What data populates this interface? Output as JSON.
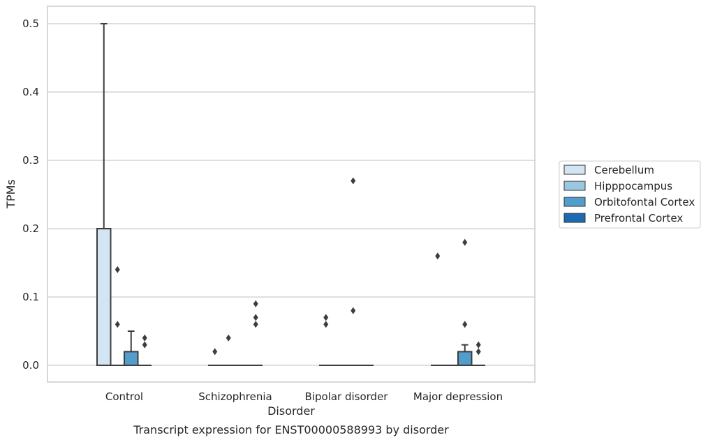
{
  "chart_data": {
    "type": "box",
    "caption": "Transcript expression for ENST00000588993 by disorder",
    "xlabel": "Disorder",
    "ylabel": "TPMs",
    "ylim": [
      -0.025,
      0.525
    ],
    "yticks": [
      0.0,
      0.1,
      0.2,
      0.3,
      0.4,
      0.5
    ],
    "ytick_labels": [
      "0.0",
      "0.1",
      "0.2",
      "0.3",
      "0.4",
      "0.5"
    ],
    "grid": "horizontal",
    "legend_position": "right",
    "categories": [
      "Control",
      "Schizophrenia",
      "Bipolar disorder",
      "Major depression"
    ],
    "series": [
      {
        "name": "Cerebellum",
        "color": "#d3e4f3",
        "boxes": [
          {
            "q1": 0.0,
            "median": 0.0,
            "q3": 0.2,
            "whisker_low": 0.0,
            "whisker_high": 0.5,
            "outliers": []
          },
          {
            "q1": 0.0,
            "median": 0.0,
            "q3": 0.0,
            "whisker_low": 0.0,
            "whisker_high": 0.0,
            "outliers": [
              0.02
            ]
          },
          {
            "q1": 0.0,
            "median": 0.0,
            "q3": 0.0,
            "whisker_low": 0.0,
            "whisker_high": 0.0,
            "outliers": [
              0.06,
              0.07
            ]
          },
          {
            "q1": 0.0,
            "median": 0.0,
            "q3": 0.0,
            "whisker_low": 0.0,
            "whisker_high": 0.0,
            "outliers": [
              0.16
            ]
          }
        ]
      },
      {
        "name": "Hipppocampus",
        "color": "#9ac8e0",
        "boxes": [
          {
            "q1": 0.0,
            "median": 0.0,
            "q3": 0.0,
            "whisker_low": 0.0,
            "whisker_high": 0.0,
            "outliers": [
              0.06,
              0.14
            ]
          },
          {
            "q1": 0.0,
            "median": 0.0,
            "q3": 0.0,
            "whisker_low": 0.0,
            "whisker_high": 0.0,
            "outliers": [
              0.04
            ]
          },
          {
            "q1": 0.0,
            "median": 0.0,
            "q3": 0.0,
            "whisker_low": 0.0,
            "whisker_high": 0.0,
            "outliers": []
          },
          {
            "q1": 0.0,
            "median": 0.0,
            "q3": 0.0,
            "whisker_low": 0.0,
            "whisker_high": 0.0,
            "outliers": []
          }
        ]
      },
      {
        "name": "Orbitofontal Cortex",
        "color": "#529dcc",
        "boxes": [
          {
            "q1": 0.0,
            "median": 0.0,
            "q3": 0.02,
            "whisker_low": 0.0,
            "whisker_high": 0.05,
            "outliers": []
          },
          {
            "q1": 0.0,
            "median": 0.0,
            "q3": 0.0,
            "whisker_low": 0.0,
            "whisker_high": 0.0,
            "outliers": []
          },
          {
            "q1": 0.0,
            "median": 0.0,
            "q3": 0.0,
            "whisker_low": 0.0,
            "whisker_high": 0.0,
            "outliers": [
              0.08,
              0.27
            ]
          },
          {
            "q1": 0.0,
            "median": 0.0,
            "q3": 0.02,
            "whisker_low": 0.0,
            "whisker_high": 0.03,
            "outliers": [
              0.06,
              0.18
            ]
          }
        ]
      },
      {
        "name": "Prefrontal Cortex",
        "color": "#1c6aaf",
        "boxes": [
          {
            "q1": 0.0,
            "median": 0.0,
            "q3": 0.0,
            "whisker_low": 0.0,
            "whisker_high": 0.0,
            "outliers": [
              0.03,
              0.04
            ]
          },
          {
            "q1": 0.0,
            "median": 0.0,
            "q3": 0.0,
            "whisker_low": 0.0,
            "whisker_high": 0.0,
            "outliers": [
              0.06,
              0.07,
              0.09
            ]
          },
          {
            "q1": 0.0,
            "median": 0.0,
            "q3": 0.0,
            "whisker_low": 0.0,
            "whisker_high": 0.0,
            "outliers": []
          },
          {
            "q1": 0.0,
            "median": 0.0,
            "q3": 0.0,
            "whisker_low": 0.0,
            "whisker_high": 0.0,
            "outliers": [
              0.02,
              0.03
            ]
          }
        ]
      }
    ]
  }
}
